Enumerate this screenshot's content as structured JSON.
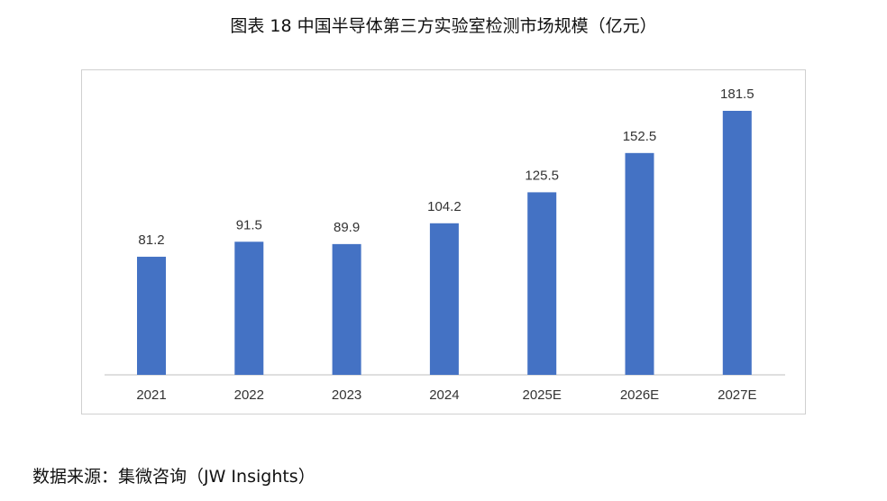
{
  "title": "图表 18  中国半导体第三方实验室检测市场规模（亿元）",
  "source": "数据来源：集微咨询（JW Insights）",
  "chart_data": {
    "type": "bar",
    "title": "图表 18  中国半导体第三方实验室检测市场规模（亿元）",
    "categories": [
      "2021",
      "2022",
      "2023",
      "2024",
      "2025E",
      "2026E",
      "2027E"
    ],
    "values": [
      81.2,
      91.5,
      89.9,
      104.2,
      125.5,
      152.5,
      181.5
    ],
    "data_labels": [
      "81.2",
      "91.5",
      "89.9",
      "104.2",
      "125.5",
      "152.5",
      "181.5"
    ],
    "xlabel": "",
    "ylabel": "",
    "ylim": [
      0,
      181.5
    ],
    "grid": false,
    "legend": "none",
    "bar_color": "#4472C4"
  }
}
